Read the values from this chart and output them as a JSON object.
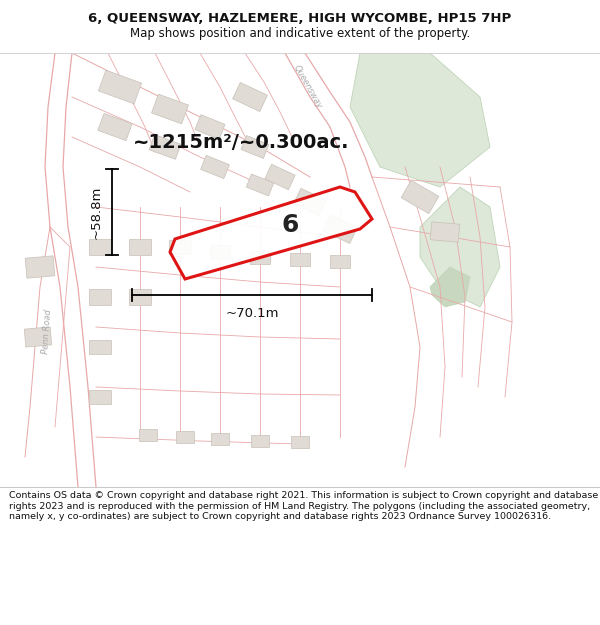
{
  "title_line1": "6, QUEENSWAY, HAZLEMERE, HIGH WYCOMBE, HP15 7HP",
  "title_line2": "Map shows position and indicative extent of the property.",
  "area_text": "~1215m²/~0.300ac.",
  "property_number": "6",
  "dim_height": "~58.8m",
  "dim_width": "~70.1m",
  "road_label_penn": "Penn Road",
  "road_label_queens": "Queensway",
  "footer_text": "Contains OS data © Crown copyright and database right 2021. This information is subject to Crown copyright and database rights 2023 and is reproduced with the permission of HM Land Registry. The polygons (including the associated geometry, namely x, y co-ordinates) are subject to Crown copyright and database rights 2023 Ordnance Survey 100026316.",
  "map_bg": "#f7f4f1",
  "green_color": "#dde8d8",
  "green_edge": "#c0d4b8",
  "property_fill": "#ffffff",
  "property_edge": "#dd0000",
  "road_line_color": "#e8a8a8",
  "building_fill": "#e0dbd4",
  "building_edge": "#c8c0b8",
  "footer_bg": "#ffffff",
  "title_bg": "#ffffff",
  "dim_color": "#111111",
  "text_color": "#111111"
}
